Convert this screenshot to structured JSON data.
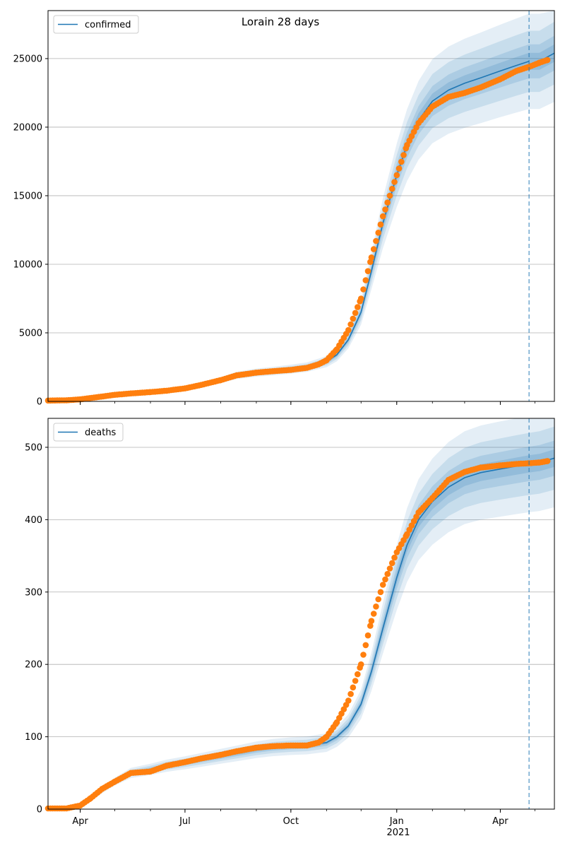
{
  "chart_data": [
    {
      "type": "line",
      "title": "Lorain 28 days",
      "legend": {
        "label": "confirmed",
        "placement": "top-left"
      },
      "x_ticks": [
        "Apr",
        "Jul",
        "Oct",
        "Jan",
        "Apr"
      ],
      "x_year_label": "2021",
      "y_ticks": [
        "0",
        "5000",
        "10000",
        "15000",
        "20000",
        "25000"
      ],
      "ylim": [
        0,
        28500
      ],
      "xlim": [
        "2020-03-04",
        "2021-05-18"
      ],
      "forecast_date": "2021-04-26",
      "grid": "horizontal",
      "colors": {
        "line": "#1f77b4",
        "observed": "#ff7f0e",
        "band": "#1f77b4"
      },
      "series": [
        {
          "name": "confirmed",
          "kind": "model-line",
          "x": [
            "2020-03-04",
            "2020-04-01",
            "2020-04-15",
            "2020-05-01",
            "2020-05-15",
            "2020-06-01",
            "2020-06-15",
            "2020-07-01",
            "2020-07-15",
            "2020-08-01",
            "2020-08-15",
            "2020-09-01",
            "2020-09-15",
            "2020-10-01",
            "2020-10-15",
            "2020-11-01",
            "2020-11-10",
            "2020-11-20",
            "2020-12-01",
            "2020-12-10",
            "2020-12-20",
            "2021-01-01",
            "2021-01-10",
            "2021-01-20",
            "2021-02-01",
            "2021-02-15",
            "2021-03-01",
            "2021-03-15",
            "2021-04-01",
            "2021-04-15",
            "2021-04-26"
          ],
          "values": [
            60,
            150,
            300,
            480,
            580,
            680,
            780,
            950,
            1200,
            1550,
            1900,
            2100,
            2200,
            2350,
            2500,
            2900,
            3400,
            4500,
            6500,
            9500,
            13000,
            16500,
            18700,
            20500,
            21900,
            22700,
            23200,
            23600,
            24100,
            24500,
            24800
          ]
        },
        {
          "name": "confirmed-forecast",
          "kind": "model-line",
          "x": [
            "2021-04-26",
            "2021-05-05",
            "2021-05-18"
          ],
          "values": [
            24300,
            24800,
            25400
          ]
        },
        {
          "name": "observed-confirmed",
          "kind": "observed",
          "x": [
            "2020-03-04",
            "2020-03-20",
            "2020-04-01",
            "2020-04-15",
            "2020-05-01",
            "2020-05-15",
            "2020-06-01",
            "2020-06-15",
            "2020-07-01",
            "2020-07-15",
            "2020-08-01",
            "2020-08-15",
            "2020-09-01",
            "2020-09-15",
            "2020-10-01",
            "2020-10-15",
            "2020-10-25",
            "2020-11-01",
            "2020-11-10",
            "2020-11-20",
            "2020-12-01",
            "2020-12-10",
            "2020-12-20",
            "2021-01-01",
            "2021-01-10",
            "2021-01-20",
            "2021-02-01",
            "2021-02-15",
            "2021-03-01",
            "2021-03-15",
            "2021-04-01",
            "2021-04-15",
            "2021-04-26",
            "2021-05-05",
            "2021-05-12"
          ],
          "values": [
            60,
            80,
            150,
            300,
            480,
            580,
            680,
            780,
            950,
            1200,
            1550,
            1900,
            2100,
            2200,
            2300,
            2450,
            2700,
            3000,
            3800,
            5200,
            7500,
            10500,
            13500,
            16500,
            18700,
            20300,
            21500,
            22200,
            22500,
            22900,
            23500,
            24100,
            24400,
            24700,
            24900
          ]
        }
      ]
    },
    {
      "type": "line",
      "title": "",
      "legend": {
        "label": "deaths",
        "placement": "top-left"
      },
      "x_ticks": [
        "Apr",
        "Jul",
        "Oct",
        "Jan",
        "Apr"
      ],
      "x_year_label": "2021",
      "y_ticks": [
        "0",
        "100",
        "200",
        "300",
        "400",
        "500"
      ],
      "ylim": [
        0,
        540
      ],
      "xlim": [
        "2020-03-04",
        "2021-05-18"
      ],
      "forecast_date": "2021-04-26",
      "grid": "horizontal",
      "colors": {
        "line": "#1f77b4",
        "observed": "#ff7f0e",
        "band": "#1f77b4"
      },
      "series": [
        {
          "name": "deaths",
          "kind": "model-line",
          "x": [
            "2020-03-04",
            "2020-04-01",
            "2020-04-15",
            "2020-05-01",
            "2020-05-15",
            "2020-06-01",
            "2020-06-15",
            "2020-07-01",
            "2020-07-15",
            "2020-08-01",
            "2020-08-15",
            "2020-09-01",
            "2020-09-15",
            "2020-10-01",
            "2020-10-15",
            "2020-11-01",
            "2020-11-10",
            "2020-11-20",
            "2020-12-01",
            "2020-12-10",
            "2020-12-20",
            "2021-01-01",
            "2021-01-10",
            "2021-01-20",
            "2021-02-01",
            "2021-02-15",
            "2021-03-01",
            "2021-03-15",
            "2021-04-01",
            "2021-04-15",
            "2021-04-26"
          ],
          "values": [
            1,
            5,
            20,
            38,
            50,
            55,
            60,
            64,
            68,
            73,
            77,
            82,
            85,
            87,
            88,
            92,
            100,
            115,
            145,
            190,
            250,
            320,
            365,
            400,
            425,
            445,
            458,
            465,
            470,
            474,
            477
          ]
        },
        {
          "name": "deaths-forecast",
          "kind": "model-line",
          "x": [
            "2021-04-26",
            "2021-05-05",
            "2021-05-18"
          ],
          "values": [
            477,
            479,
            485
          ]
        },
        {
          "name": "observed-deaths",
          "kind": "observed",
          "x": [
            "2020-03-04",
            "2020-03-20",
            "2020-04-01",
            "2020-04-10",
            "2020-04-20",
            "2020-05-01",
            "2020-05-15",
            "2020-06-01",
            "2020-06-15",
            "2020-07-01",
            "2020-07-15",
            "2020-08-01",
            "2020-08-15",
            "2020-09-01",
            "2020-09-15",
            "2020-10-01",
            "2020-10-15",
            "2020-10-25",
            "2020-11-01",
            "2020-11-10",
            "2020-11-20",
            "2020-12-01",
            "2020-12-10",
            "2020-12-20",
            "2021-01-01",
            "2021-01-10",
            "2021-01-20",
            "2021-02-01",
            "2021-02-15",
            "2021-03-01",
            "2021-03-15",
            "2021-04-01",
            "2021-04-15",
            "2021-04-26",
            "2021-05-05",
            "2021-05-12"
          ],
          "values": [
            1,
            1,
            5,
            15,
            28,
            38,
            50,
            52,
            60,
            65,
            70,
            75,
            80,
            85,
            87,
            88,
            88,
            92,
            100,
            120,
            150,
            200,
            260,
            310,
            355,
            380,
            410,
            430,
            455,
            466,
            472,
            475,
            477,
            478,
            479,
            481
          ]
        }
      ]
    }
  ]
}
